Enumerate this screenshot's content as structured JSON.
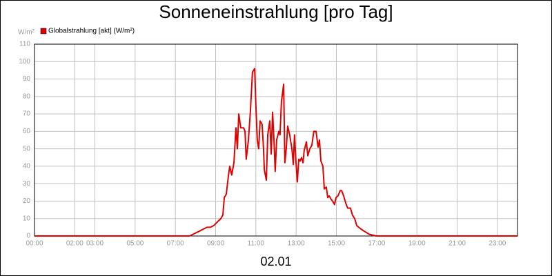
{
  "chart_data": {
    "type": "line",
    "title": "Sonneneinstrahlung [pro Tag]",
    "y_unit": "W/m²",
    "x_label": "02.01",
    "series": [
      {
        "name": "Globalstrahlung [akt] (W/m²)",
        "color": "#e00000",
        "x": [
          0,
          7.7,
          7.88,
          8.23,
          8.4,
          8.57,
          8.74,
          8.91,
          9.08,
          9.26,
          9.36,
          9.43,
          9.53,
          9.63,
          9.7,
          9.8,
          9.91,
          10.01,
          10.08,
          10.15,
          10.25,
          10.39,
          10.46,
          10.52,
          10.63,
          10.73,
          10.83,
          10.94,
          11.0,
          11.07,
          11.14,
          11.21,
          11.31,
          11.38,
          11.42,
          11.52,
          11.59,
          11.69,
          11.76,
          11.83,
          11.9,
          11.96,
          12.03,
          12.14,
          12.2,
          12.27,
          12.38,
          12.44,
          12.51,
          12.58,
          12.68,
          12.79,
          12.86,
          12.92,
          12.99,
          13.06,
          13.13,
          13.2,
          13.27,
          13.34,
          13.4,
          13.51,
          13.58,
          13.68,
          13.78,
          13.88,
          13.99,
          14.09,
          14.16,
          14.23,
          14.33,
          14.4,
          14.5,
          14.57,
          14.64,
          14.74,
          14.81,
          14.91,
          14.98,
          15.08,
          15.19,
          15.26,
          15.36,
          15.46,
          15.56,
          15.7,
          15.8,
          15.91,
          16.01,
          16.11,
          16.22,
          16.35,
          16.49,
          16.63,
          16.8,
          16.97,
          24
        ],
        "values": [
          0,
          0,
          1,
          3,
          4,
          5,
          5,
          6,
          8,
          10,
          12,
          22,
          24,
          34,
          40,
          35,
          42,
          62,
          50,
          70,
          62,
          62,
          60,
          44,
          55,
          72,
          94,
          96,
          75,
          55,
          50,
          66,
          64,
          50,
          38,
          32,
          58,
          66,
          47,
          71,
          55,
          37,
          55,
          60,
          58,
          77,
          87,
          42,
          50,
          63,
          58,
          50,
          41,
          58,
          43,
          31,
          44,
          43,
          45,
          42,
          49,
          54,
          46,
          50,
          52,
          60,
          60,
          51,
          55,
          43,
          40,
          27,
          28,
          22,
          23,
          21,
          20,
          18,
          22,
          23,
          26,
          26,
          23,
          19,
          16,
          16,
          12,
          10,
          6,
          5,
          4,
          3,
          2,
          1,
          0.5,
          0,
          0
        ]
      }
    ],
    "xlim": [
      0,
      24
    ],
    "xticks": [
      {
        "value": 0,
        "label": "00:00"
      },
      {
        "value": 2,
        "label": "02:00"
      },
      {
        "value": 3,
        "label": "03:00"
      },
      {
        "value": 5,
        "label": "05:00"
      },
      {
        "value": 7,
        "label": "07:00"
      },
      {
        "value": 9,
        "label": "09:00"
      },
      {
        "value": 11,
        "label": "11:00"
      },
      {
        "value": 13,
        "label": "13:00"
      },
      {
        "value": 15,
        "label": "15:00"
      },
      {
        "value": 17,
        "label": "17:00"
      },
      {
        "value": 19,
        "label": "19:00"
      },
      {
        "value": 21,
        "label": "21:00"
      },
      {
        "value": 23,
        "label": "23:00"
      }
    ],
    "ylim": [
      0,
      110
    ],
    "yticks": [
      0,
      10,
      20,
      30,
      40,
      50,
      60,
      70,
      80,
      90,
      100,
      110
    ],
    "grid": true
  }
}
